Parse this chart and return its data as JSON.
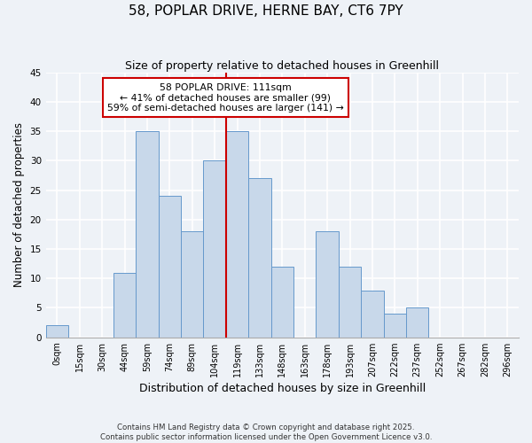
{
  "title": "58, POPLAR DRIVE, HERNE BAY, CT6 7PY",
  "subtitle": "Size of property relative to detached houses in Greenhill",
  "xlabel": "Distribution of detached houses by size in Greenhill",
  "ylabel": "Number of detached properties",
  "bin_labels": [
    "0sqm",
    "15sqm",
    "30sqm",
    "44sqm",
    "59sqm",
    "74sqm",
    "89sqm",
    "104sqm",
    "119sqm",
    "133sqm",
    "148sqm",
    "163sqm",
    "178sqm",
    "193sqm",
    "207sqm",
    "222sqm",
    "237sqm",
    "252sqm",
    "267sqm",
    "282sqm",
    "296sqm"
  ],
  "bar_heights": [
    2,
    0,
    0,
    11,
    35,
    24,
    18,
    30,
    35,
    27,
    12,
    0,
    18,
    12,
    8,
    4,
    5,
    0,
    0,
    0,
    0
  ],
  "bar_color": "#c8d8ea",
  "bar_edgecolor": "#6699cc",
  "ylim": [
    0,
    45
  ],
  "yticks": [
    0,
    5,
    10,
    15,
    20,
    25,
    30,
    35,
    40,
    45
  ],
  "annotation_title": "58 POPLAR DRIVE: 111sqm",
  "annotation_line1": "← 41% of detached houses are smaller (99)",
  "annotation_line2": "59% of semi-detached houses are larger (141) →",
  "footer1": "Contains HM Land Registry data © Crown copyright and database right 2025.",
  "footer2": "Contains public sector information licensed under the Open Government Licence v3.0.",
  "background_color": "#eef2f7",
  "grid_color": "#ffffff",
  "annotation_box_facecolor": "#ffffff",
  "annotation_box_edgecolor": "#cc0000",
  "vline_color": "#cc0000",
  "vline_bin_index": 8.0
}
